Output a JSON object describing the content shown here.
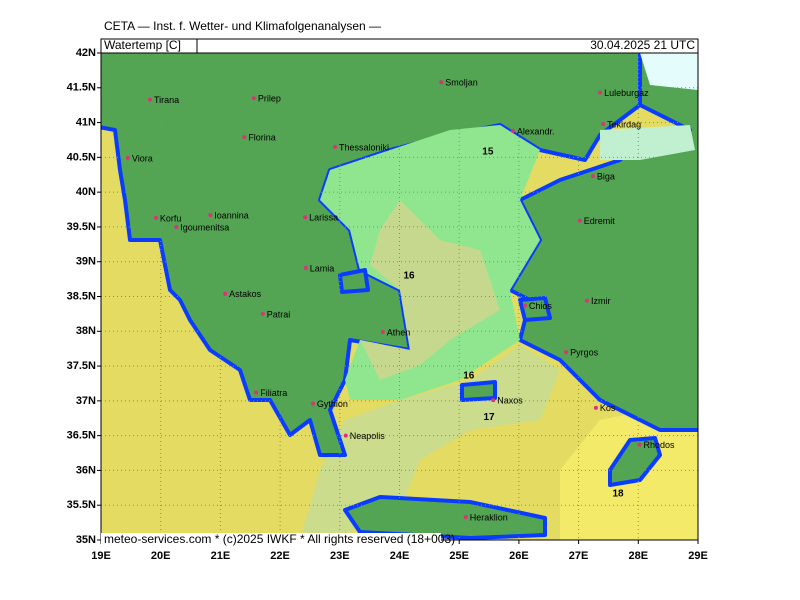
{
  "header": {
    "title": "CETA — Inst. f. Wetter- und Klimafolgenanalysen —",
    "variable": "Watertemp [C]",
    "valid_time": "30.04.2025 21 UTC",
    "footer": "meteo-services.com * (c)2025 IWKF * All rights reserved (18+003)"
  },
  "map": {
    "lon_range": [
      19,
      29
    ],
    "lat_range": [
      35,
      42
    ],
    "lat_ticks": [
      {
        "value": 35,
        "label": "35N"
      },
      {
        "value": 35.5,
        "label": "35.5N"
      },
      {
        "value": 36,
        "label": "36N"
      },
      {
        "value": 36.5,
        "label": "36.5N"
      },
      {
        "value": 37,
        "label": "37N"
      },
      {
        "value": 37.5,
        "label": "37.5N"
      },
      {
        "value": 38,
        "label": "38N"
      },
      {
        "value": 38.5,
        "label": "38.5N"
      },
      {
        "value": 39,
        "label": "39N"
      },
      {
        "value": 39.5,
        "label": "39.5N"
      },
      {
        "value": 40,
        "label": "40N"
      },
      {
        "value": 40.5,
        "label": "40.5N"
      },
      {
        "value": 41,
        "label": "41N"
      },
      {
        "value": 41.5,
        "label": "41.5N"
      },
      {
        "value": 42,
        "label": "42N"
      }
    ],
    "lon_ticks": [
      {
        "value": 19,
        "label": "19E"
      },
      {
        "value": 20,
        "label": "20E"
      },
      {
        "value": 21,
        "label": "21E"
      },
      {
        "value": 22,
        "label": "22E"
      },
      {
        "value": 23,
        "label": "23E"
      },
      {
        "value": 24,
        "label": "24E"
      },
      {
        "value": 25,
        "label": "25E"
      },
      {
        "value": 26,
        "label": "26E"
      },
      {
        "value": 27,
        "label": "27E"
      },
      {
        "value": 28,
        "label": "28E"
      },
      {
        "value": 29,
        "label": "29E"
      }
    ],
    "cities": [
      {
        "name": "Tirana",
        "lon": 19.82,
        "lat": 41.33
      },
      {
        "name": "Prilep",
        "lon": 21.56,
        "lat": 41.35
      },
      {
        "name": "Smoljan",
        "lon": 24.7,
        "lat": 41.58
      },
      {
        "name": "Luleburgaz",
        "lon": 27.36,
        "lat": 41.43
      },
      {
        "name": "Alexandr.",
        "lon": 25.9,
        "lat": 40.88
      },
      {
        "name": "Tekirdag",
        "lon": 27.41,
        "lat": 40.98
      },
      {
        "name": "Florina",
        "lon": 21.4,
        "lat": 40.79
      },
      {
        "name": "Thessaloniki",
        "lon": 22.92,
        "lat": 40.65
      },
      {
        "name": "Viora",
        "lon": 19.45,
        "lat": 40.49
      },
      {
        "name": "Biga",
        "lon": 27.24,
        "lat": 40.23
      },
      {
        "name": "Korfu",
        "lon": 19.92,
        "lat": 39.63
      },
      {
        "name": "Ioannina",
        "lon": 20.83,
        "lat": 39.67
      },
      {
        "name": "Igoumenitsa",
        "lon": 20.26,
        "lat": 39.5
      },
      {
        "name": "Larissa",
        "lon": 22.42,
        "lat": 39.64
      },
      {
        "name": "Edremit",
        "lon": 27.02,
        "lat": 39.59
      },
      {
        "name": "Lamia",
        "lon": 22.43,
        "lat": 38.91
      },
      {
        "name": "Astakos",
        "lon": 21.08,
        "lat": 38.54
      },
      {
        "name": "Izmir",
        "lon": 27.14,
        "lat": 38.44
      },
      {
        "name": "Chios",
        "lon": 26.1,
        "lat": 38.37
      },
      {
        "name": "Patrai",
        "lon": 21.71,
        "lat": 38.25
      },
      {
        "name": "Athen",
        "lon": 23.72,
        "lat": 37.99
      },
      {
        "name": "Pyrgos",
        "lon": 26.79,
        "lat": 37.7
      },
      {
        "name": "Filiatra",
        "lon": 21.6,
        "lat": 37.12
      },
      {
        "name": "Naxos",
        "lon": 25.57,
        "lat": 37.01
      },
      {
        "name": "Gythion",
        "lon": 22.55,
        "lat": 36.96
      },
      {
        "name": "Kos",
        "lon": 27.29,
        "lat": 36.9
      },
      {
        "name": "Neapolis",
        "lon": 23.1,
        "lat": 36.5
      },
      {
        "name": "Rhodos",
        "lon": 28.02,
        "lat": 36.37
      },
      {
        "name": "Heraklion",
        "lon": 25.11,
        "lat": 35.33
      }
    ],
    "contour_labels": [
      {
        "value": 15,
        "lon": 25.48,
        "lat": 40.58
      },
      {
        "value": 16,
        "lon": 24.16,
        "lat": 38.8
      },
      {
        "value": 16,
        "lon": 25.16,
        "lat": 37.36
      },
      {
        "value": 17,
        "lon": 25.5,
        "lat": 36.76
      },
      {
        "value": 18,
        "lon": 27.66,
        "lat": 35.66
      }
    ]
  }
}
